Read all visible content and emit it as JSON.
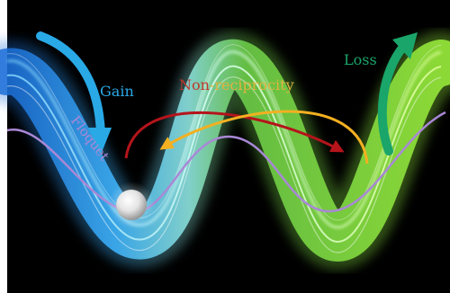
{
  "labels": {
    "gain": "Gain",
    "loss": "Loss",
    "floquet": "Floquet",
    "nonreciprocity_prefix": "Non",
    "nonreciprocity_suffix": "-reciprocity"
  },
  "colors": {
    "background": "#000000",
    "gain_blue": "#29a9e6",
    "loss_green": "#1aa56a",
    "ribbon_blue": "#3fb6ff",
    "ribbon_green": "#7be23c",
    "floquet_purple": "#a988d6",
    "red_arrow": "#b5141b",
    "orange_arrow": "#f3b021",
    "nonreciprocity_red": "#c0392b",
    "nonreciprocity_gold": "#e0b341"
  }
}
